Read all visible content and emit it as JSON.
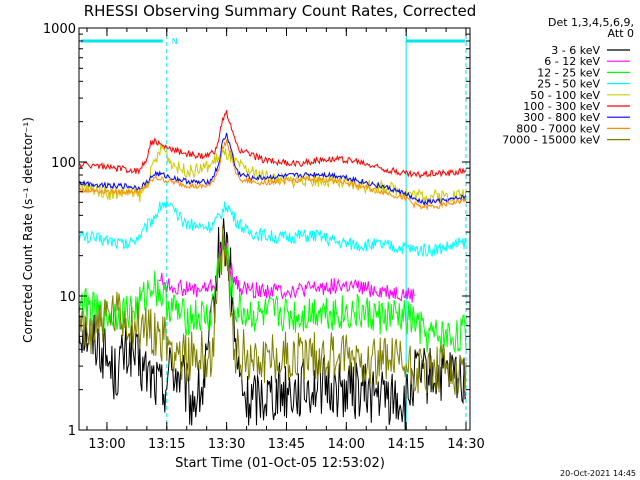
{
  "chart_data": {
    "type": "line",
    "title": "RHESSI Observing Summary Count Rates, Corrected",
    "xlabel": "Start Time (01-Oct-05 12:53:02)",
    "ylabel": "Corrected Count Rate (s⁻¹ detector⁻¹)",
    "y_scale": "log",
    "ylim": [
      1,
      1000
    ],
    "xlim_minutes": [
      0,
      98
    ],
    "x_ticks": [
      {
        "label": "13:00",
        "min": 7
      },
      {
        "label": "13:15",
        "min": 22
      },
      {
        "label": "13:30",
        "min": 37
      },
      {
        "label": "13:45",
        "min": 52
      },
      {
        "label": "14:00",
        "min": 67
      },
      {
        "label": "14:15",
        "min": 82
      },
      {
        "label": "14:30",
        "min": 97
      }
    ],
    "y_ticks": [
      {
        "label": "1",
        "value": 1
      },
      {
        "label": "10",
        "value": 10
      },
      {
        "label": "100",
        "value": 100
      },
      {
        "label": "1000",
        "value": 1000
      }
    ],
    "legend_header": [
      "Det 1,3,4,5,6,9,",
      "Att 0"
    ],
    "legend_position": "right",
    "annotation": "N",
    "footer_date": "20-Oct-2021 14:45",
    "night_lines_min": [
      22,
      82,
      97
    ],
    "series": [
      {
        "name": "3 - 6 keV",
        "color": "#000000",
        "noise": 0.22,
        "points": [
          [
            0,
            6
          ],
          [
            5,
            4.5
          ],
          [
            9,
            2.6
          ],
          [
            11,
            3.5
          ],
          [
            13,
            4
          ],
          [
            15,
            3
          ],
          [
            18,
            2.5
          ],
          [
            21,
            2
          ],
          [
            23,
            3
          ],
          [
            26,
            2.3
          ],
          [
            28,
            1.6
          ],
          [
            31,
            2
          ],
          [
            33,
            5
          ],
          [
            35,
            20
          ],
          [
            36,
            27
          ],
          [
            37,
            25
          ],
          [
            38,
            14
          ],
          [
            39,
            5
          ],
          [
            40,
            2.5
          ],
          [
            42,
            1.6
          ],
          [
            45,
            1.8
          ],
          [
            50,
            2
          ],
          [
            55,
            2
          ],
          [
            60,
            2.2
          ],
          [
            65,
            2
          ],
          [
            70,
            2
          ],
          [
            75,
            1.8
          ],
          [
            80,
            1.7
          ],
          [
            82,
            1.5
          ],
          [
            84,
            2.5
          ],
          [
            87,
            2.5
          ],
          [
            90,
            2.5
          ],
          [
            95,
            2.5
          ],
          [
            97,
            2.5
          ]
        ]
      },
      {
        "name": "6 - 12 keV",
        "color": "#ff00ff",
        "noise": 0.06,
        "points": [
          [
            20,
            14
          ],
          [
            22,
            12
          ],
          [
            25,
            11.5
          ],
          [
            30,
            11
          ],
          [
            34,
            12
          ],
          [
            36,
            24
          ],
          [
            37,
            23
          ],
          [
            38,
            16
          ],
          [
            40,
            11.5
          ],
          [
            45,
            11
          ],
          [
            50,
            11
          ],
          [
            55,
            11
          ],
          [
            60,
            11.5
          ],
          [
            65,
            12
          ],
          [
            70,
            11.5
          ],
          [
            75,
            11
          ],
          [
            80,
            10.5
          ],
          [
            84,
            10
          ]
        ]
      },
      {
        "name": "12 - 25 keV",
        "color": "#00ff00",
        "noise": 0.14,
        "points": [
          [
            0,
            9
          ],
          [
            3,
            8
          ],
          [
            6,
            7
          ],
          [
            10,
            7.5
          ],
          [
            14,
            8
          ],
          [
            17,
            10
          ],
          [
            18,
            13
          ],
          [
            20,
            11
          ],
          [
            22,
            9
          ],
          [
            26,
            7
          ],
          [
            30,
            7
          ],
          [
            33,
            7
          ],
          [
            35,
            18
          ],
          [
            36,
            22
          ],
          [
            37,
            21
          ],
          [
            38,
            13
          ],
          [
            39,
            8
          ],
          [
            42,
            7.5
          ],
          [
            45,
            7
          ],
          [
            50,
            7.5
          ],
          [
            55,
            7
          ],
          [
            60,
            8
          ],
          [
            65,
            7.5
          ],
          [
            70,
            7.5
          ],
          [
            75,
            7
          ],
          [
            80,
            7
          ],
          [
            84,
            6.5
          ],
          [
            87,
            5
          ],
          [
            90,
            5
          ],
          [
            95,
            5
          ],
          [
            97,
            5.5
          ]
        ]
      },
      {
        "name": "25 - 50 keV",
        "color": "#00ffff",
        "noise": 0.05,
        "points": [
          [
            0,
            28
          ],
          [
            4,
            27
          ],
          [
            8,
            26
          ],
          [
            12,
            24
          ],
          [
            16,
            30
          ],
          [
            19,
            40
          ],
          [
            21,
            50
          ],
          [
            23,
            45
          ],
          [
            26,
            36
          ],
          [
            30,
            33
          ],
          [
            33,
            33
          ],
          [
            35,
            38
          ],
          [
            37,
            48
          ],
          [
            39,
            38
          ],
          [
            42,
            30
          ],
          [
            45,
            29
          ],
          [
            50,
            27
          ],
          [
            55,
            28
          ],
          [
            60,
            28
          ],
          [
            65,
            25
          ],
          [
            70,
            24
          ],
          [
            75,
            24
          ],
          [
            80,
            23
          ],
          [
            82,
            23
          ],
          [
            84,
            22
          ],
          [
            88,
            22
          ],
          [
            92,
            23
          ],
          [
            97,
            25
          ]
        ]
      },
      {
        "name": "50 - 100 keV",
        "color": "#cccc00",
        "noise": 0.05,
        "points": [
          [
            0,
            65
          ],
          [
            4,
            63
          ],
          [
            8,
            58
          ],
          [
            12,
            60
          ],
          [
            15,
            55
          ],
          [
            17,
            68
          ],
          [
            19,
            100
          ],
          [
            21,
            130
          ],
          [
            23,
            100
          ],
          [
            25,
            90
          ],
          [
            28,
            85
          ],
          [
            31,
            90
          ],
          [
            33,
            95
          ],
          [
            35,
            110
          ],
          [
            37,
            115
          ],
          [
            39,
            100
          ],
          [
            41,
            90
          ],
          [
            44,
            82
          ],
          [
            47,
            78
          ],
          [
            50,
            75
          ],
          [
            53,
            72
          ],
          [
            56,
            74
          ],
          [
            60,
            73
          ],
          [
            64,
            70
          ],
          [
            68,
            68
          ],
          [
            72,
            66
          ],
          [
            76,
            64
          ],
          [
            80,
            62
          ],
          [
            84,
            57
          ],
          [
            88,
            56
          ],
          [
            92,
            56
          ],
          [
            97,
            58
          ]
        ]
      },
      {
        "name": "100 - 300 keV",
        "color": "#ff0000",
        "noise": 0.025,
        "points": [
          [
            0,
            95
          ],
          [
            4,
            95
          ],
          [
            8,
            90
          ],
          [
            12,
            88
          ],
          [
            15,
            85
          ],
          [
            17,
            108
          ],
          [
            18,
            138
          ],
          [
            19,
            143
          ],
          [
            21,
            130
          ],
          [
            23,
            125
          ],
          [
            26,
            118
          ],
          [
            28,
            115
          ],
          [
            30,
            110
          ],
          [
            32,
            110
          ],
          [
            34,
            120
          ],
          [
            35,
            150
          ],
          [
            36,
            205
          ],
          [
            37,
            230
          ],
          [
            38,
            190
          ],
          [
            39,
            145
          ],
          [
            40,
            125
          ],
          [
            42,
            118
          ],
          [
            44,
            110
          ],
          [
            46,
            105
          ],
          [
            50,
            100
          ],
          [
            53,
            97
          ],
          [
            56,
            98
          ],
          [
            59,
            102
          ],
          [
            62,
            106
          ],
          [
            65,
            105
          ],
          [
            68,
            103
          ],
          [
            71,
            98
          ],
          [
            74,
            93
          ],
          [
            77,
            88
          ],
          [
            80,
            84
          ],
          [
            82,
            82
          ],
          [
            84,
            80
          ],
          [
            87,
            82
          ],
          [
            90,
            83
          ],
          [
            93,
            83
          ],
          [
            96,
            86
          ],
          [
            97,
            88
          ]
        ]
      },
      {
        "name": "300 - 800 keV",
        "color": "#0000ff",
        "noise": 0.02,
        "points": [
          [
            0,
            70
          ],
          [
            4,
            68
          ],
          [
            8,
            67
          ],
          [
            12,
            66
          ],
          [
            15,
            64
          ],
          [
            17,
            70
          ],
          [
            19,
            82
          ],
          [
            21,
            80
          ],
          [
            24,
            75
          ],
          [
            27,
            72
          ],
          [
            30,
            70
          ],
          [
            33,
            72
          ],
          [
            35,
            95
          ],
          [
            36,
            140
          ],
          [
            37,
            160
          ],
          [
            38,
            130
          ],
          [
            39,
            95
          ],
          [
            40,
            82
          ],
          [
            42,
            78
          ],
          [
            45,
            76
          ],
          [
            48,
            77
          ],
          [
            51,
            78
          ],
          [
            54,
            79
          ],
          [
            57,
            80
          ],
          [
            60,
            81
          ],
          [
            63,
            80
          ],
          [
            66,
            78
          ],
          [
            69,
            74
          ],
          [
            72,
            70
          ],
          [
            75,
            67
          ],
          [
            78,
            63
          ],
          [
            80,
            60
          ],
          [
            82,
            58
          ],
          [
            84,
            52
          ],
          [
            87,
            50
          ],
          [
            90,
            51
          ],
          [
            93,
            52
          ],
          [
            97,
            55
          ]
        ]
      },
      {
        "name": "800 - 7000 keV",
        "color": "#ff8c00",
        "noise": 0.02,
        "points": [
          [
            0,
            62
          ],
          [
            4,
            61
          ],
          [
            8,
            60
          ],
          [
            12,
            60
          ],
          [
            15,
            60
          ],
          [
            17,
            66
          ],
          [
            19,
            76
          ],
          [
            21,
            74
          ],
          [
            24,
            70
          ],
          [
            27,
            67
          ],
          [
            30,
            65
          ],
          [
            33,
            67
          ],
          [
            35,
            88
          ],
          [
            36,
            125
          ],
          [
            37,
            145
          ],
          [
            38,
            118
          ],
          [
            39,
            88
          ],
          [
            40,
            76
          ],
          [
            42,
            72
          ],
          [
            45,
            70
          ],
          [
            48,
            71
          ],
          [
            51,
            72
          ],
          [
            54,
            73
          ],
          [
            57,
            74
          ],
          [
            60,
            74
          ],
          [
            63,
            73
          ],
          [
            66,
            71
          ],
          [
            69,
            68
          ],
          [
            72,
            64
          ],
          [
            75,
            61
          ],
          [
            78,
            58
          ],
          [
            80,
            55
          ],
          [
            82,
            54
          ],
          [
            84,
            48
          ],
          [
            87,
            46
          ],
          [
            90,
            47
          ],
          [
            93,
            49
          ],
          [
            97,
            52
          ]
        ]
      },
      {
        "name": "7000 - 15000 keV",
        "color": "#808000",
        "noise": 0.2,
        "points": [
          [
            0,
            5
          ],
          [
            4,
            6
          ],
          [
            8,
            7
          ],
          [
            12,
            6.5
          ],
          [
            16,
            5.5
          ],
          [
            18,
            6
          ],
          [
            20,
            5
          ],
          [
            22,
            4.5
          ],
          [
            24,
            4
          ],
          [
            27,
            3.5
          ],
          [
            30,
            3.5
          ],
          [
            33,
            3.5
          ],
          [
            35,
            12
          ],
          [
            36,
            22
          ],
          [
            37,
            18
          ],
          [
            38,
            8
          ],
          [
            39,
            4
          ],
          [
            42,
            3.5
          ],
          [
            45,
            3.5
          ],
          [
            50,
            3.5
          ],
          [
            55,
            3.5
          ],
          [
            60,
            3.6
          ],
          [
            65,
            3.5
          ],
          [
            70,
            3.5
          ],
          [
            75,
            3.4
          ],
          [
            80,
            3.2
          ],
          [
            82,
            3
          ],
          [
            84,
            2.8
          ],
          [
            88,
            2.6
          ],
          [
            92,
            2.8
          ],
          [
            97,
            3
          ]
        ]
      }
    ]
  }
}
